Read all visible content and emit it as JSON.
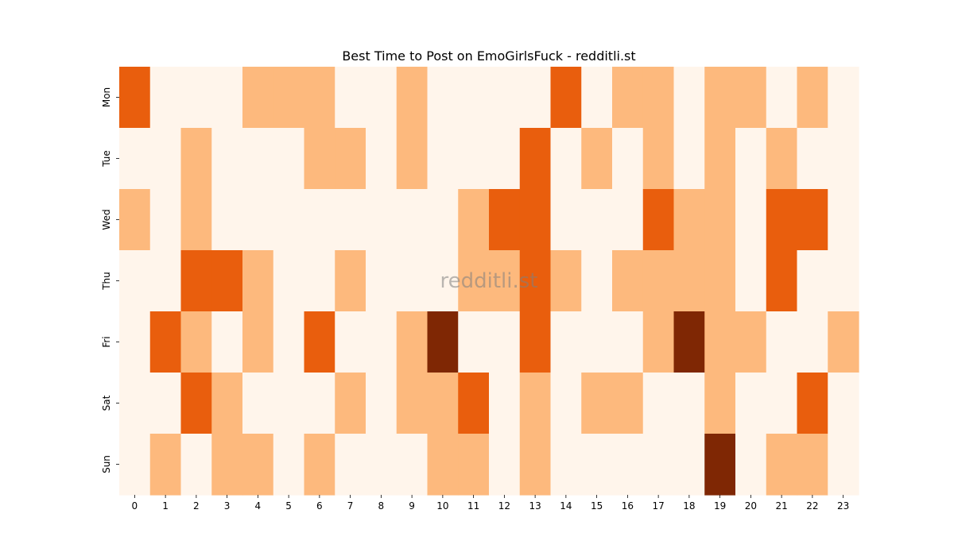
{
  "chart_data": {
    "type": "heatmap",
    "title": "Best Time to Post on EmoGirlsFuck - redditli.st",
    "watermark": "redditli.st",
    "x_categories": [
      "0",
      "1",
      "2",
      "3",
      "4",
      "5",
      "6",
      "7",
      "8",
      "9",
      "10",
      "11",
      "12",
      "13",
      "14",
      "15",
      "16",
      "17",
      "18",
      "19",
      "20",
      "21",
      "22",
      "23"
    ],
    "y_categories": [
      "Mon",
      "Tue",
      "Wed",
      "Thu",
      "Fri",
      "Sat",
      "Sun"
    ],
    "colorscale": [
      "#fff5eb",
      "#fdb97d",
      "#e95e0d",
      "#7f2704"
    ],
    "grid": false,
    "legend": "none",
    "values": [
      [
        2,
        0,
        0,
        0,
        1,
        1,
        1,
        0,
        0,
        1,
        0,
        0,
        0,
        0,
        2,
        0,
        1,
        1,
        0,
        1,
        1,
        0,
        1,
        0
      ],
      [
        0,
        0,
        1,
        0,
        0,
        0,
        1,
        1,
        0,
        1,
        0,
        0,
        0,
        2,
        0,
        1,
        0,
        1,
        0,
        1,
        0,
        1,
        0,
        0
      ],
      [
        1,
        0,
        1,
        0,
        0,
        0,
        0,
        0,
        0,
        0,
        0,
        1,
        2,
        2,
        0,
        0,
        0,
        2,
        1,
        1,
        0,
        2,
        2,
        0
      ],
      [
        0,
        0,
        2,
        2,
        1,
        0,
        0,
        1,
        0,
        0,
        0,
        1,
        1,
        2,
        1,
        0,
        1,
        1,
        1,
        1,
        0,
        2,
        0,
        0
      ],
      [
        0,
        2,
        1,
        0,
        1,
        0,
        2,
        0,
        0,
        1,
        3,
        0,
        0,
        2,
        0,
        0,
        0,
        1,
        3,
        1,
        1,
        0,
        0,
        1
      ],
      [
        0,
        0,
        2,
        1,
        0,
        0,
        0,
        1,
        0,
        1,
        1,
        2,
        0,
        1,
        0,
        1,
        1,
        0,
        0,
        1,
        0,
        0,
        2,
        0
      ],
      [
        0,
        1,
        0,
        1,
        1,
        0,
        1,
        0,
        0,
        0,
        1,
        1,
        0,
        1,
        0,
        0,
        0,
        0,
        0,
        3,
        0,
        1,
        1,
        0
      ]
    ]
  }
}
